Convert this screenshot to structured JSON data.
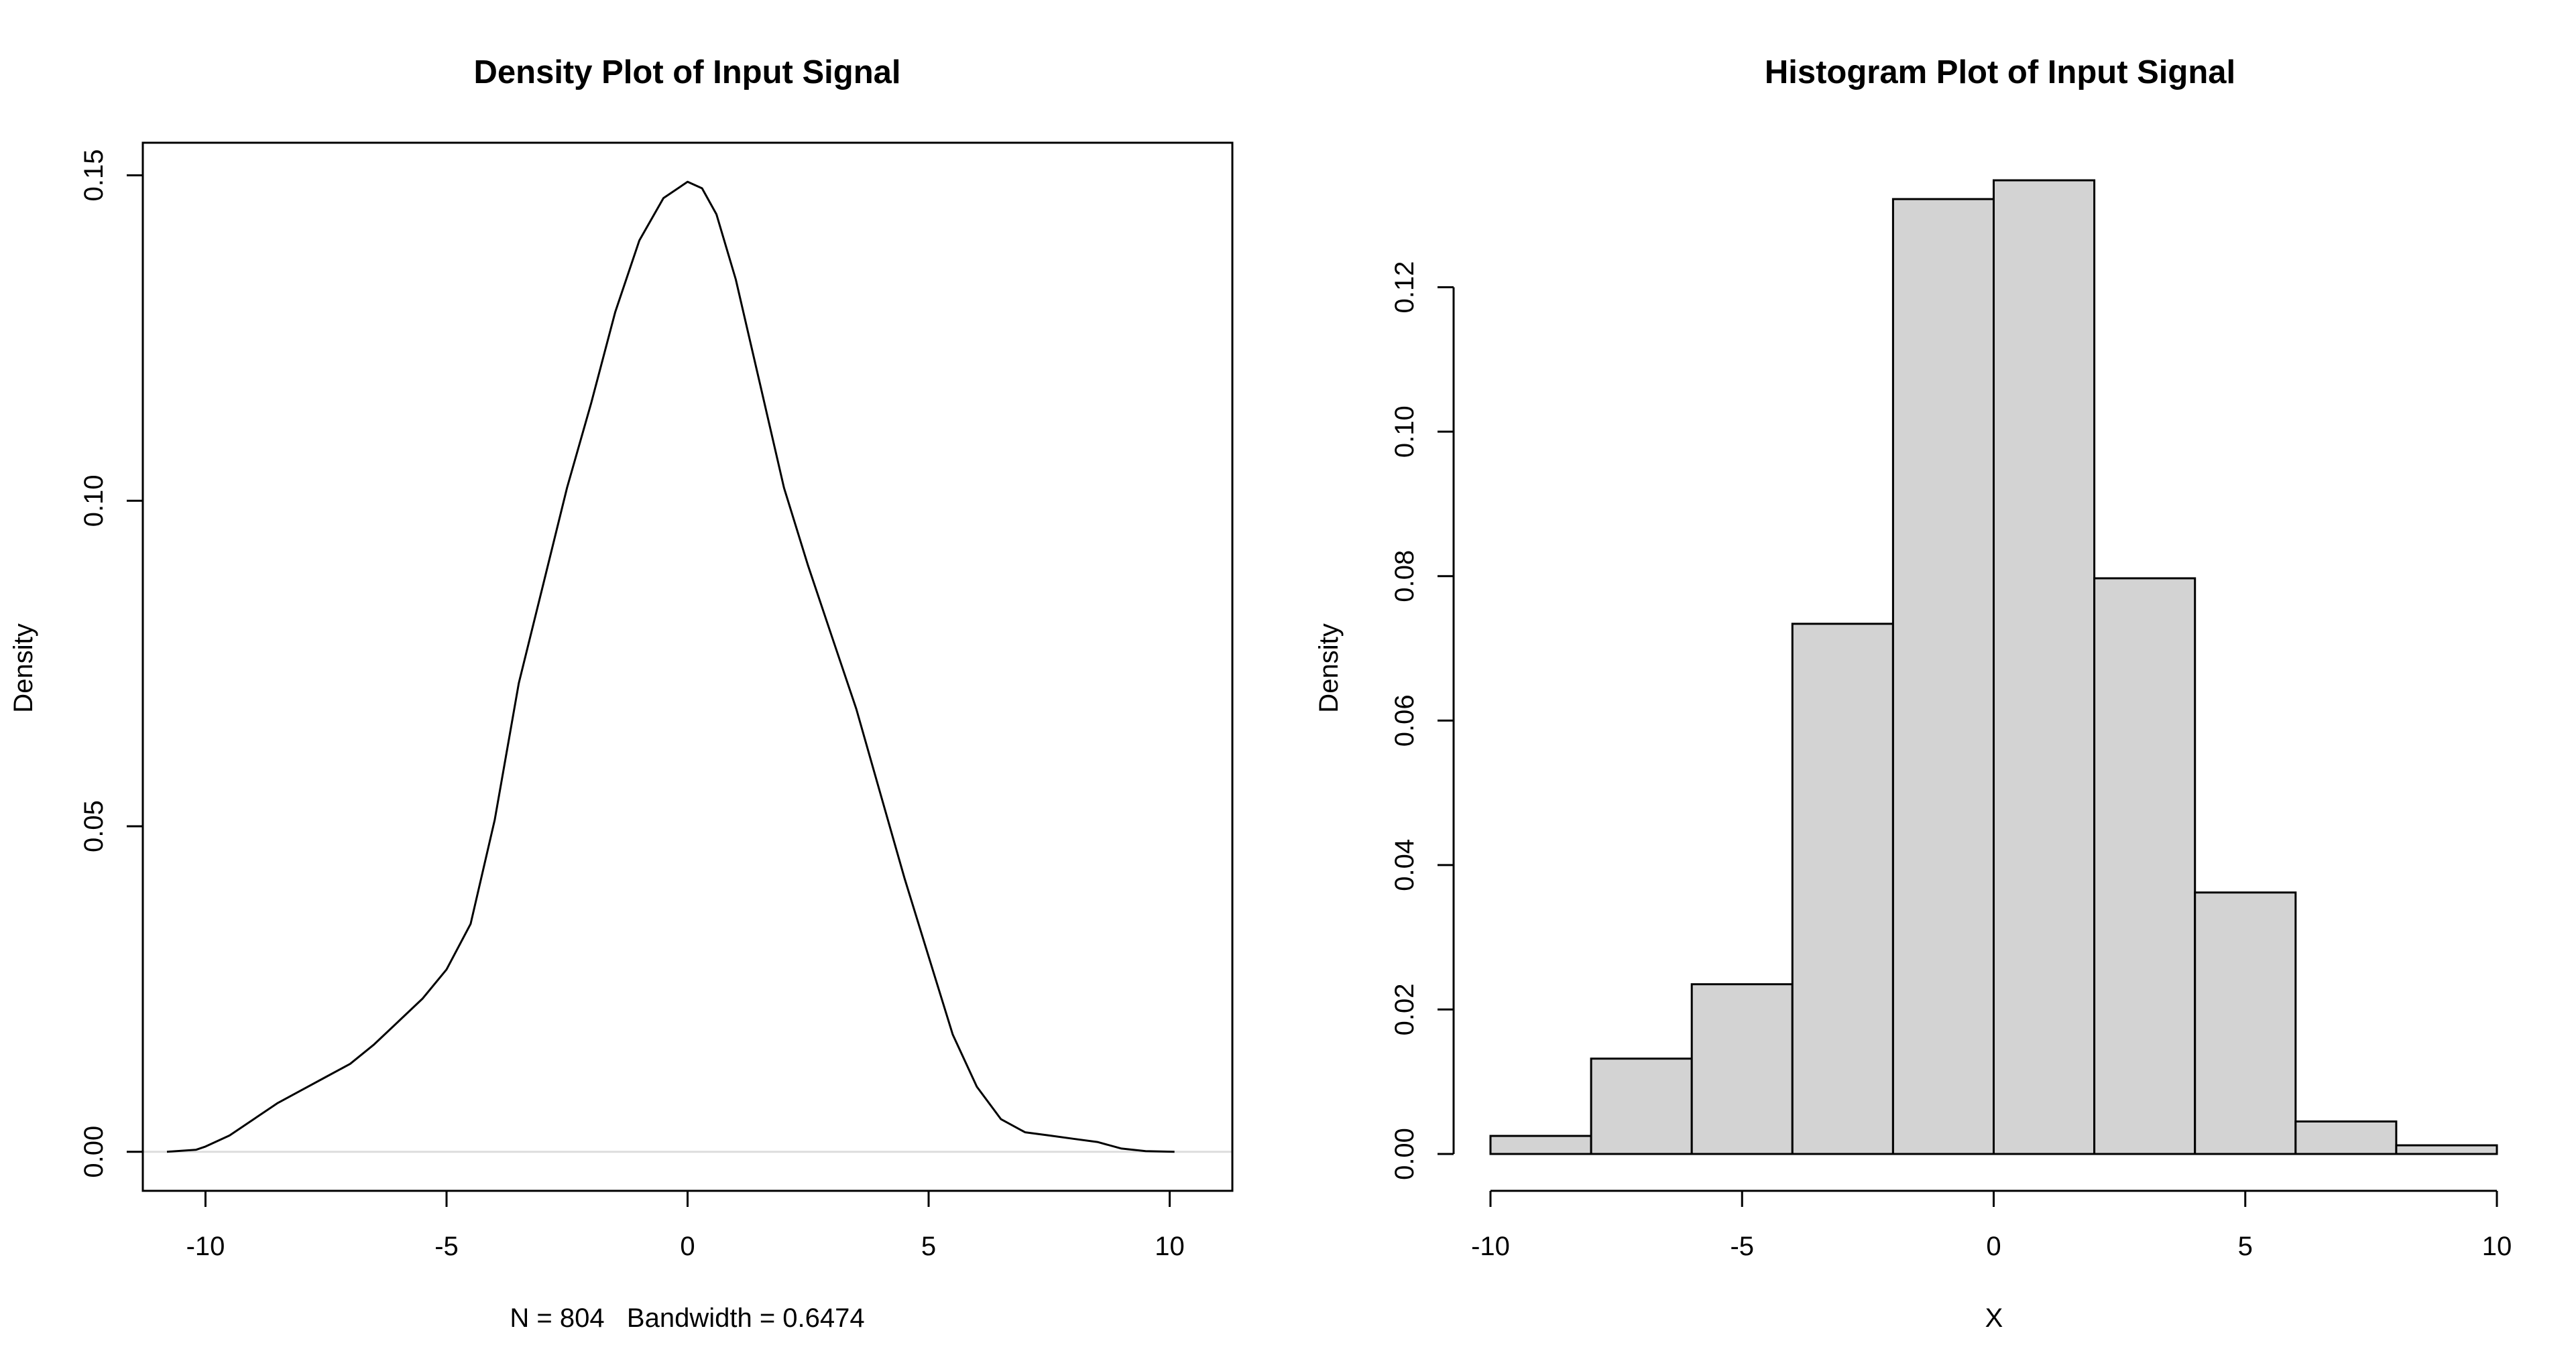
{
  "chart_data": [
    {
      "type": "line",
      "title": "Density Plot of Input Signal",
      "xlabel": "N = 804   Bandwidth = 0.6474",
      "ylabel": "Density",
      "xlim": [
        -11.3,
        11.3
      ],
      "ylim": [
        -0.006,
        0.155
      ],
      "x_ticks": [
        -10,
        -5,
        0,
        5,
        10
      ],
      "x_tick_labels": [
        "-10",
        "-5",
        "0",
        "5",
        "10"
      ],
      "y_ticks": [
        0.0,
        0.05,
        0.1,
        0.15
      ],
      "y_tick_labels": [
        "0.00",
        "0.05",
        "0.10",
        "0.15"
      ],
      "grid": false,
      "baseline": 0,
      "colors": {
        "line": "#000000",
        "baseline": "#dddddd",
        "box": "#000000"
      },
      "series": [
        {
          "x": [
            -10.8,
            -10.2,
            -10.0,
            -9.5,
            -9.0,
            -8.5,
            -8.0,
            -7.5,
            -7.0,
            -6.5,
            -6.0,
            -5.5,
            -5.0,
            -4.5,
            -4.0,
            -3.5,
            -3.0,
            -2.5,
            -2.0,
            -1.5,
            -1.0,
            -0.5,
            0.0,
            0.3,
            0.6,
            1.0,
            1.5,
            2.0,
            2.5,
            3.0,
            3.5,
            4.0,
            4.5,
            5.0,
            5.5,
            6.0,
            6.5,
            7.0,
            7.5,
            8.0,
            8.5,
            9.0,
            9.5,
            10.1
          ],
          "y": [
            0.0,
            0.0003,
            0.0008,
            0.0025,
            0.005,
            0.0075,
            0.0095,
            0.0115,
            0.0135,
            0.0165,
            0.02,
            0.0235,
            0.028,
            0.035,
            0.051,
            0.072,
            0.087,
            0.102,
            0.115,
            0.129,
            0.14,
            0.1465,
            0.149,
            0.148,
            0.144,
            0.134,
            0.118,
            0.102,
            0.09,
            0.079,
            0.068,
            0.055,
            0.042,
            0.03,
            0.018,
            0.01,
            0.005,
            0.003,
            0.0025,
            0.002,
            0.0015,
            0.0005,
            0.0001,
            0.0
          ]
        }
      ]
    },
    {
      "type": "bar",
      "title": "Histogram Plot of Input Signal",
      "xlabel": "X",
      "ylabel": "Density",
      "xlim": [
        -10,
        10
      ],
      "ylim": [
        0,
        0.14
      ],
      "bins": [
        [
          -10,
          -8
        ],
        [
          -8,
          -6
        ],
        [
          -6,
          -4
        ],
        [
          -4,
          -2
        ],
        [
          -2,
          0
        ],
        [
          0,
          2
        ],
        [
          2,
          4
        ],
        [
          4,
          6
        ],
        [
          6,
          8
        ],
        [
          8,
          10
        ]
      ],
      "values": [
        0.0025,
        0.0132,
        0.0235,
        0.0734,
        0.1322,
        0.1348,
        0.0797,
        0.0362,
        0.0045,
        0.0012
      ],
      "x_ticks": [
        -10,
        -5,
        0,
        5,
        10
      ],
      "x_tick_labels": [
        "-10",
        "-5",
        "0",
        "5",
        "10"
      ],
      "y_ticks": [
        0.0,
        0.02,
        0.04,
        0.06,
        0.08,
        0.1,
        0.12
      ],
      "y_tick_labels": [
        "0.00",
        "0.02",
        "0.04",
        "0.06",
        "0.08",
        "0.10",
        "0.12"
      ],
      "grid": false,
      "colors": {
        "bar_fill": "#d3d3d3",
        "bar_stroke": "#000000",
        "axis": "#000000"
      }
    }
  ]
}
